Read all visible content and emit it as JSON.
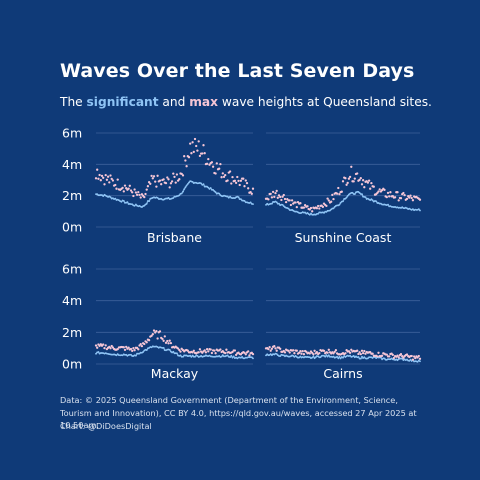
{
  "title": "Waves Over the Last Seven Days",
  "subtitle": {
    "prefix": "The ",
    "sig": "significant",
    "mid": " and ",
    "max": "max",
    "suffix": " wave heights at Queensland sites."
  },
  "caption": "Data: © 2025 Queensland Government (Department of the Environment, Science, Tourism and Innovation), CC BY 4.0, https://qld.gov.au/waves, accessed 27 Apr 2025 at 10.50am.",
  "credit": "Chart: @DiDoesDigital",
  "colors": {
    "background": "#0f3a78",
    "significant": "#8fc4f5",
    "max": "#f6c6d6",
    "grid": "#3d619a"
  },
  "chart_data": [
    {
      "type": "scatter",
      "facet": "Brisbane",
      "ylim": [
        0,
        6
      ],
      "yticks": [
        "0m",
        "2m",
        "4m",
        "6m"
      ],
      "grid": true,
      "series": [
        {
          "name": "significant",
          "x": [
            0,
            6,
            12,
            18,
            24,
            30,
            36,
            42,
            48,
            54,
            60,
            66,
            72,
            78,
            84,
            90,
            96,
            100
          ],
          "y": [
            2.1,
            2.0,
            1.8,
            1.6,
            1.4,
            1.3,
            1.9,
            1.8,
            1.8,
            2.1,
            2.9,
            2.8,
            2.5,
            2.1,
            1.9,
            1.9,
            1.6,
            1.5
          ]
        },
        {
          "name": "max",
          "x": [
            0,
            6,
            12,
            18,
            24,
            30,
            36,
            42,
            48,
            54,
            60,
            66,
            72,
            78,
            84,
            90,
            96,
            100
          ],
          "y": [
            3.6,
            3.1,
            2.8,
            2.6,
            2.2,
            1.8,
            3.0,
            2.8,
            2.9,
            3.4,
            5.1,
            5.0,
            4.3,
            3.7,
            3.3,
            3.0,
            2.6,
            2.3
          ]
        }
      ]
    },
    {
      "type": "scatter",
      "facet": "Sunshine Coast",
      "ylim": [
        0,
        6
      ],
      "grid": true,
      "series": [
        {
          "name": "significant",
          "x": [
            0,
            6,
            12,
            18,
            24,
            30,
            36,
            42,
            48,
            54,
            60,
            66,
            72,
            78,
            84,
            90,
            96,
            100
          ],
          "y": [
            1.4,
            1.6,
            1.3,
            1.0,
            0.9,
            0.8,
            0.9,
            1.1,
            1.5,
            2.1,
            2.2,
            1.8,
            1.6,
            1.4,
            1.3,
            1.2,
            1.1,
            1.1
          ]
        },
        {
          "name": "max",
          "x": [
            0,
            6,
            12,
            18,
            24,
            30,
            36,
            42,
            48,
            54,
            60,
            66,
            72,
            78,
            84,
            90,
            96,
            100
          ],
          "y": [
            1.8,
            2.2,
            1.9,
            1.5,
            1.3,
            1.1,
            1.4,
            1.7,
            2.4,
            3.4,
            3.3,
            2.7,
            2.3,
            2.1,
            2.0,
            1.9,
            1.8,
            1.7
          ]
        }
      ]
    },
    {
      "type": "scatter",
      "facet": "Mackay",
      "ylim": [
        0,
        6
      ],
      "yticks": [
        "0m",
        "2m",
        "4m",
        "6m"
      ],
      "grid": true,
      "series": [
        {
          "name": "significant",
          "x": [
            0,
            6,
            12,
            18,
            24,
            30,
            36,
            42,
            48,
            54,
            60,
            66,
            72,
            78,
            84,
            90,
            96,
            100
          ],
          "y": [
            0.7,
            0.7,
            0.6,
            0.6,
            0.5,
            0.8,
            1.1,
            1.0,
            0.8,
            0.5,
            0.5,
            0.5,
            0.5,
            0.5,
            0.5,
            0.4,
            0.4,
            0.4
          ]
        },
        {
          "name": "max",
          "x": [
            0,
            6,
            12,
            18,
            24,
            30,
            36,
            42,
            48,
            54,
            60,
            66,
            72,
            78,
            84,
            90,
            96,
            100
          ],
          "y": [
            1.1,
            1.1,
            1.0,
            1.0,
            0.9,
            1.2,
            1.9,
            1.8,
            1.2,
            0.9,
            0.8,
            0.8,
            0.8,
            0.8,
            0.8,
            0.7,
            0.7,
            0.6
          ]
        }
      ]
    },
    {
      "type": "scatter",
      "facet": "Cairns",
      "ylim": [
        0,
        6
      ],
      "grid": true,
      "series": [
        {
          "name": "significant",
          "x": [
            0,
            6,
            12,
            18,
            24,
            30,
            36,
            42,
            48,
            54,
            60,
            66,
            72,
            78,
            84,
            90,
            96,
            100
          ],
          "y": [
            0.6,
            0.6,
            0.5,
            0.5,
            0.4,
            0.4,
            0.5,
            0.5,
            0.4,
            0.5,
            0.4,
            0.4,
            0.4,
            0.3,
            0.3,
            0.3,
            0.2,
            0.2
          ]
        },
        {
          "name": "max",
          "x": [
            0,
            6,
            12,
            18,
            24,
            30,
            36,
            42,
            48,
            54,
            60,
            66,
            72,
            78,
            84,
            90,
            96,
            100
          ],
          "y": [
            0.9,
            1.0,
            0.8,
            0.8,
            0.7,
            0.7,
            0.8,
            0.8,
            0.7,
            0.8,
            0.7,
            0.7,
            0.6,
            0.6,
            0.5,
            0.5,
            0.4,
            0.4
          ]
        }
      ]
    }
  ]
}
